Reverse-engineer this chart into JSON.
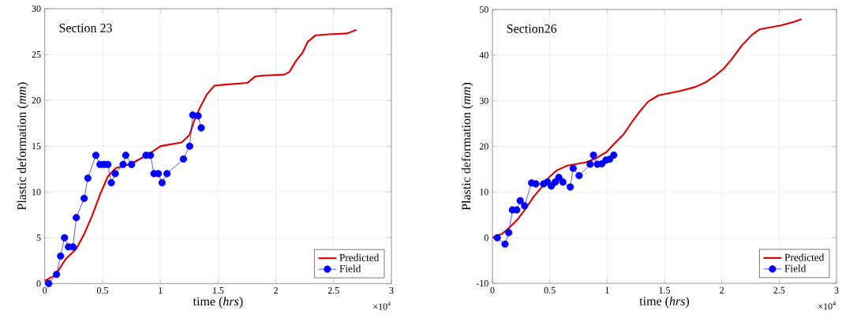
{
  "chart_data": [
    {
      "type": "line",
      "xlabel": "time (*hrs*)",
      "ylabel": "Plastic deformation (*mm*)",
      "annotations": [
        "Section 23",
        "×10$^{4}$"
      ],
      "xlim": [
        0,
        3
      ],
      "xticks": [
        0,
        0.5,
        1,
        1.5,
        2,
        2.5,
        3
      ],
      "ylim": [
        0,
        30
      ],
      "yticks": [
        0,
        5,
        10,
        15,
        20,
        25,
        30
      ],
      "grid": true,
      "legend": "bottom right",
      "series": [
        {
          "name": "Predicted",
          "color": "#e00000",
          "marker": "none",
          "line_style": "solid",
          "x": [
            0,
            0.091,
            0.182,
            0.273,
            0.341,
            0.41,
            0.478,
            0.546,
            0.615,
            0.751,
            0.91,
            1.002,
            1.184,
            1.252,
            1.297,
            1.343,
            1.4,
            1.468,
            1.548,
            1.753,
            1.821,
            1.889,
            2.071,
            2.117,
            2.174,
            2.231,
            2.276,
            2.344,
            2.458,
            2.617,
            2.697
          ],
          "values": [
            0.3,
            0.9,
            2.7,
            3.8,
            5.4,
            7.4,
            9.7,
            11.7,
            12.6,
            13.1,
            14.2,
            15.0,
            15.4,
            16.2,
            17.9,
            19.2,
            20.6,
            21.6,
            21.7,
            21.9,
            22.6,
            22.7,
            22.8,
            23.1,
            24.3,
            25.2,
            26.4,
            27.1,
            27.2,
            27.3,
            27.7
          ]
        },
        {
          "name": "Field",
          "color": "#0000ff",
          "marker": "circle",
          "line_style": "solid",
          "x": [
            0.034,
            0.102,
            0.137,
            0.171,
            0.205,
            0.244,
            0.273,
            0.341,
            0.373,
            0.442,
            0.478,
            0.512,
            0.546,
            0.576,
            0.61,
            0.678,
            0.701,
            0.751,
            0.876,
            0.915,
            0.945,
            0.983,
            1.015,
            1.058,
            1.2,
            1.254,
            1.281,
            1.327,
            1.354
          ],
          "values": [
            0,
            1.0,
            3.0,
            5.0,
            4.0,
            4.0,
            7.2,
            9.3,
            11.5,
            14.0,
            13.0,
            13.0,
            13.0,
            11.0,
            12.0,
            13.0,
            14.0,
            13.0,
            14.0,
            14.0,
            12.0,
            12.0,
            11.0,
            12.0,
            13.6,
            15.0,
            18.4,
            18.3,
            17.0
          ]
        }
      ]
    },
    {
      "type": "line",
      "xlabel": "time (*hrs*)",
      "ylabel": "Plastic deformation (*mm*)",
      "annotations": [
        "Section26",
        "×10$^{4}$"
      ],
      "xlim": [
        0,
        3
      ],
      "xticks": [
        0,
        0.5,
        1,
        1.5,
        2,
        2.5,
        3
      ],
      "ylim": [
        -10,
        50
      ],
      "yticks": [
        -10,
        0,
        10,
        20,
        30,
        40,
        50
      ],
      "grid": true,
      "legend": "bottom right",
      "series": [
        {
          "name": "Predicted",
          "color": "#e00000",
          "marker": "none",
          "line_style": "solid",
          "x": [
            0,
            0.087,
            0.155,
            0.223,
            0.291,
            0.36,
            0.428,
            0.496,
            0.564,
            0.654,
            0.813,
            0.904,
            0.995,
            1.063,
            1.142,
            1.221,
            1.289,
            1.357,
            1.448,
            1.63,
            1.766,
            1.856,
            1.947,
            2.015,
            2.083,
            2.174,
            2.265,
            2.333,
            2.514,
            2.628,
            2.696
          ],
          "values": [
            0,
            0.9,
            2.4,
            4.1,
            6.4,
            9.0,
            11.0,
            13.3,
            14.8,
            15.8,
            16.5,
            17.4,
            18.8,
            20.6,
            22.6,
            25.5,
            27.8,
            29.8,
            31.2,
            32.1,
            33.0,
            34.0,
            35.6,
            37.0,
            39.0,
            42.1,
            44.5,
            45.7,
            46.5,
            47.3,
            47.9
          ]
        },
        {
          "name": "Field",
          "color": "#0000ff",
          "marker": "circle",
          "line_style": "solid",
          "x": [
            0.042,
            0.11,
            0.142,
            0.174,
            0.212,
            0.242,
            0.28,
            0.341,
            0.378,
            0.446,
            0.48,
            0.514,
            0.548,
            0.579,
            0.614,
            0.679,
            0.704,
            0.756,
            0.852,
            0.881,
            0.915,
            0.954,
            0.99,
            1.022,
            1.058
          ],
          "values": [
            0,
            -1.4,
            1.1,
            6.1,
            6.1,
            8.1,
            7.0,
            12.0,
            11.8,
            11.8,
            12.2,
            11.3,
            12.2,
            13.2,
            12.2,
            11.1,
            15.2,
            13.6,
            16.1,
            18.1,
            16.1,
            16.2,
            17.0,
            17.2,
            18.1
          ]
        }
      ]
    }
  ]
}
